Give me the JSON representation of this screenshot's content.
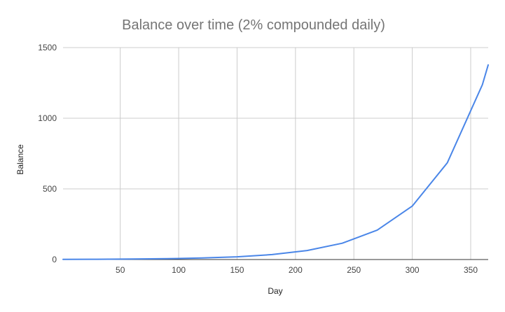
{
  "chart_data": {
    "type": "line",
    "title": "Balance over time (2% compounded daily)",
    "xlabel": "Day",
    "ylabel": "Balance",
    "xlim": [
      1,
      365
    ],
    "ylim": [
      0,
      1500
    ],
    "x_ticks": [
      50,
      100,
      150,
      200,
      250,
      300,
      350
    ],
    "y_ticks": [
      0,
      500,
      1000,
      1500
    ],
    "grid": true,
    "legend": "none",
    "series": [
      {
        "color": "#4a86e8",
        "x": [
          1,
          30,
          60,
          90,
          120,
          150,
          180,
          210,
          240,
          270,
          300,
          330,
          360,
          365
        ],
        "y": [
          1.0,
          1.8,
          3.3,
          5.9,
          10.8,
          19.5,
          35.3,
          63.8,
          115.3,
          208.6,
          378.0,
          684.0,
          1237.0,
          1377.0
        ]
      }
    ]
  }
}
